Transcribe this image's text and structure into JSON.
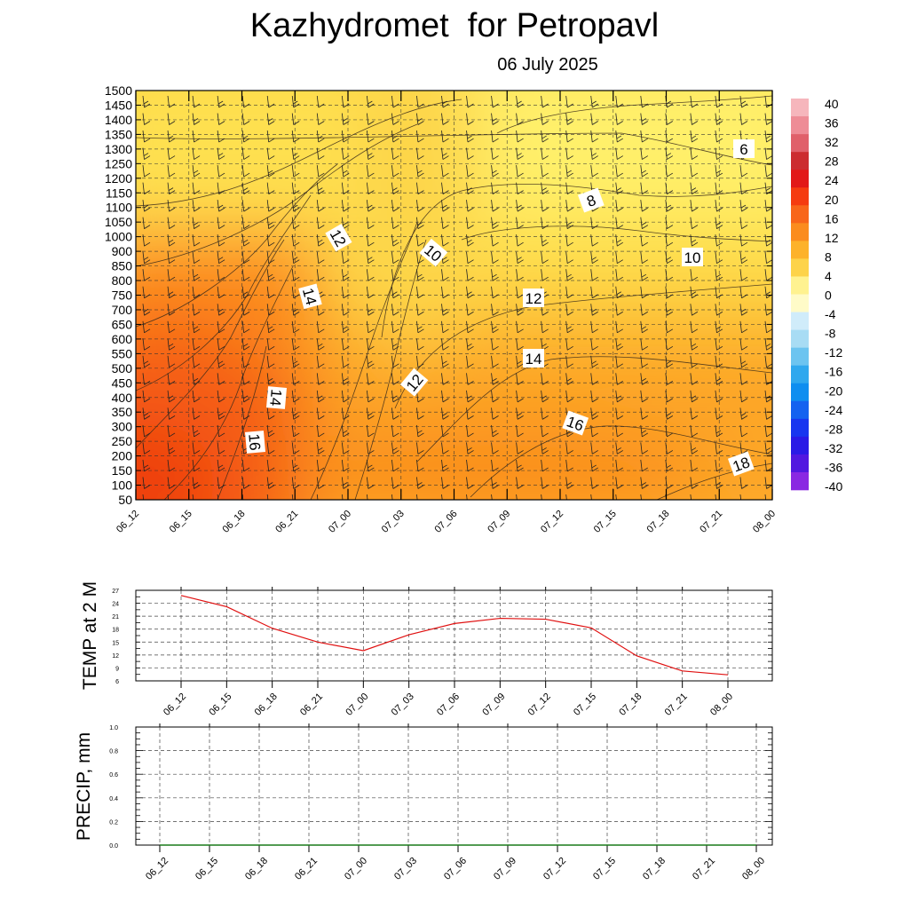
{
  "header": {
    "title": "Kazhydromet  for Petropavl",
    "date": "06 July 2025"
  },
  "chart_data": [
    {
      "type": "heatmap",
      "name": "vertical cross-section",
      "x_categories": [
        "06_12",
        "06_15",
        "06_18",
        "06_21",
        "07_00",
        "07_03",
        "07_06",
        "07_09",
        "07_12",
        "07_15",
        "07_18",
        "07_21",
        "08_00"
      ],
      "y_ticks": [
        50,
        100,
        150,
        200,
        250,
        300,
        350,
        400,
        450,
        500,
        550,
        600,
        650,
        700,
        750,
        800,
        850,
        900,
        1000,
        1050,
        1100,
        1150,
        1200,
        1250,
        1300,
        1350,
        1400,
        1450,
        1500
      ],
      "colorbar": {
        "labels": [
          "40",
          "36",
          "32",
          "28",
          "24",
          "20",
          "16",
          "12",
          "8",
          "4",
          "0",
          "-4",
          "-8",
          "-12",
          "-16",
          "-20",
          "-24",
          "-28",
          "-32",
          "-36",
          "-40"
        ],
        "range": [
          -40,
          40
        ],
        "colors": [
          "#f6b6bc",
          "#ee8c96",
          "#e0606a",
          "#cc2c30",
          "#e21818",
          "#f53b10",
          "#f8661a",
          "#fb8c1e",
          "#fdb22a",
          "#fdd34a",
          "#fff290",
          "#fffbc8",
          "#d0ecfa",
          "#a8dcf4",
          "#6cc4f0",
          "#2fa8ee",
          "#0e8ef0",
          "#1462f0",
          "#1836f0",
          "#2a1ae6",
          "#5218e0",
          "#8a28e2"
        ]
      },
      "contour_labels": [
        "6",
        "8",
        "10",
        "10",
        "12",
        "12",
        "12",
        "14",
        "14",
        "14",
        "16",
        "16",
        "18"
      ]
    },
    {
      "type": "line",
      "ylabel": "TEMP at 2 M",
      "x": [
        "06_12",
        "06_15",
        "06_18",
        "06_21",
        "07_00",
        "07_03",
        "07_06",
        "07_09",
        "07_12",
        "07_15",
        "07_18",
        "07_21",
        "08_00"
      ],
      "y": [
        25.8,
        23.2,
        18.2,
        15.0,
        13.0,
        16.7,
        19.3,
        20.5,
        20.3,
        18.3,
        11.8,
        8.3,
        7.4
      ],
      "y_ticks": [
        "6",
        "9",
        "12",
        "15",
        "18",
        "21",
        "24",
        "27"
      ],
      "ylim": [
        6,
        27
      ],
      "color": "#e01010"
    },
    {
      "type": "line",
      "ylabel": "PRECIP, mm",
      "x": [
        "06_12",
        "06_15",
        "06_18",
        "06_21",
        "07_00",
        "07_03",
        "07_06",
        "07_09",
        "07_12",
        "07_15",
        "07_18",
        "07_21",
        "08_00"
      ],
      "y": [
        0,
        0,
        0,
        0,
        0,
        0,
        0,
        0,
        0,
        0,
        0,
        0,
        0
      ],
      "y_ticks": [
        "0.0",
        "0.2",
        "0.4",
        "0.6",
        "0.8",
        "1.0"
      ],
      "ylim": [
        0,
        1.0
      ],
      "color": "#1a7a1a"
    }
  ]
}
